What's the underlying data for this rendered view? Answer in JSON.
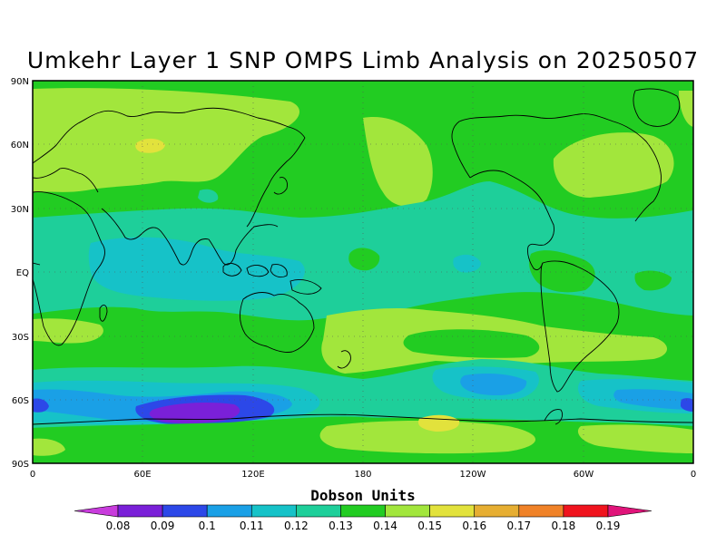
{
  "title": "Umkehr Layer 1 SNP OMPS Limb Analysis on 20250507",
  "map": {
    "lat_labels": [
      "90N",
      "60N",
      "30N",
      "EQ",
      "30S",
      "60S",
      "90S"
    ],
    "lon_labels": [
      "0",
      "60E",
      "120E",
      "180",
      "120W",
      "60W",
      "0"
    ]
  },
  "colorbar": {
    "title": "Dobson Units",
    "labels": [
      "0.08",
      "0.09",
      "0.1",
      "0.11",
      "0.12",
      "0.13",
      "0.14",
      "0.15",
      "0.16",
      "0.17",
      "0.18",
      "0.19"
    ],
    "colors": [
      "#c83cdc",
      "#7a20d8",
      "#2c48e8",
      "#1aa0e6",
      "#16c2c8",
      "#1ecf9a",
      "#22cc22",
      "#a2e63c",
      "#e2e23c",
      "#e6ae32",
      "#f08228",
      "#f0141e",
      "#e0147a"
    ]
  },
  "colors": {
    "band_014": "#22cc22",
    "band_015": "#a2e63c",
    "band_013": "#1ecf9a",
    "band_012": "#16c2c8",
    "band_011": "#1aa0e6",
    "band_010": "#2c48e8",
    "band_009": "#7a20d8",
    "band_016": "#e2e23c"
  }
}
